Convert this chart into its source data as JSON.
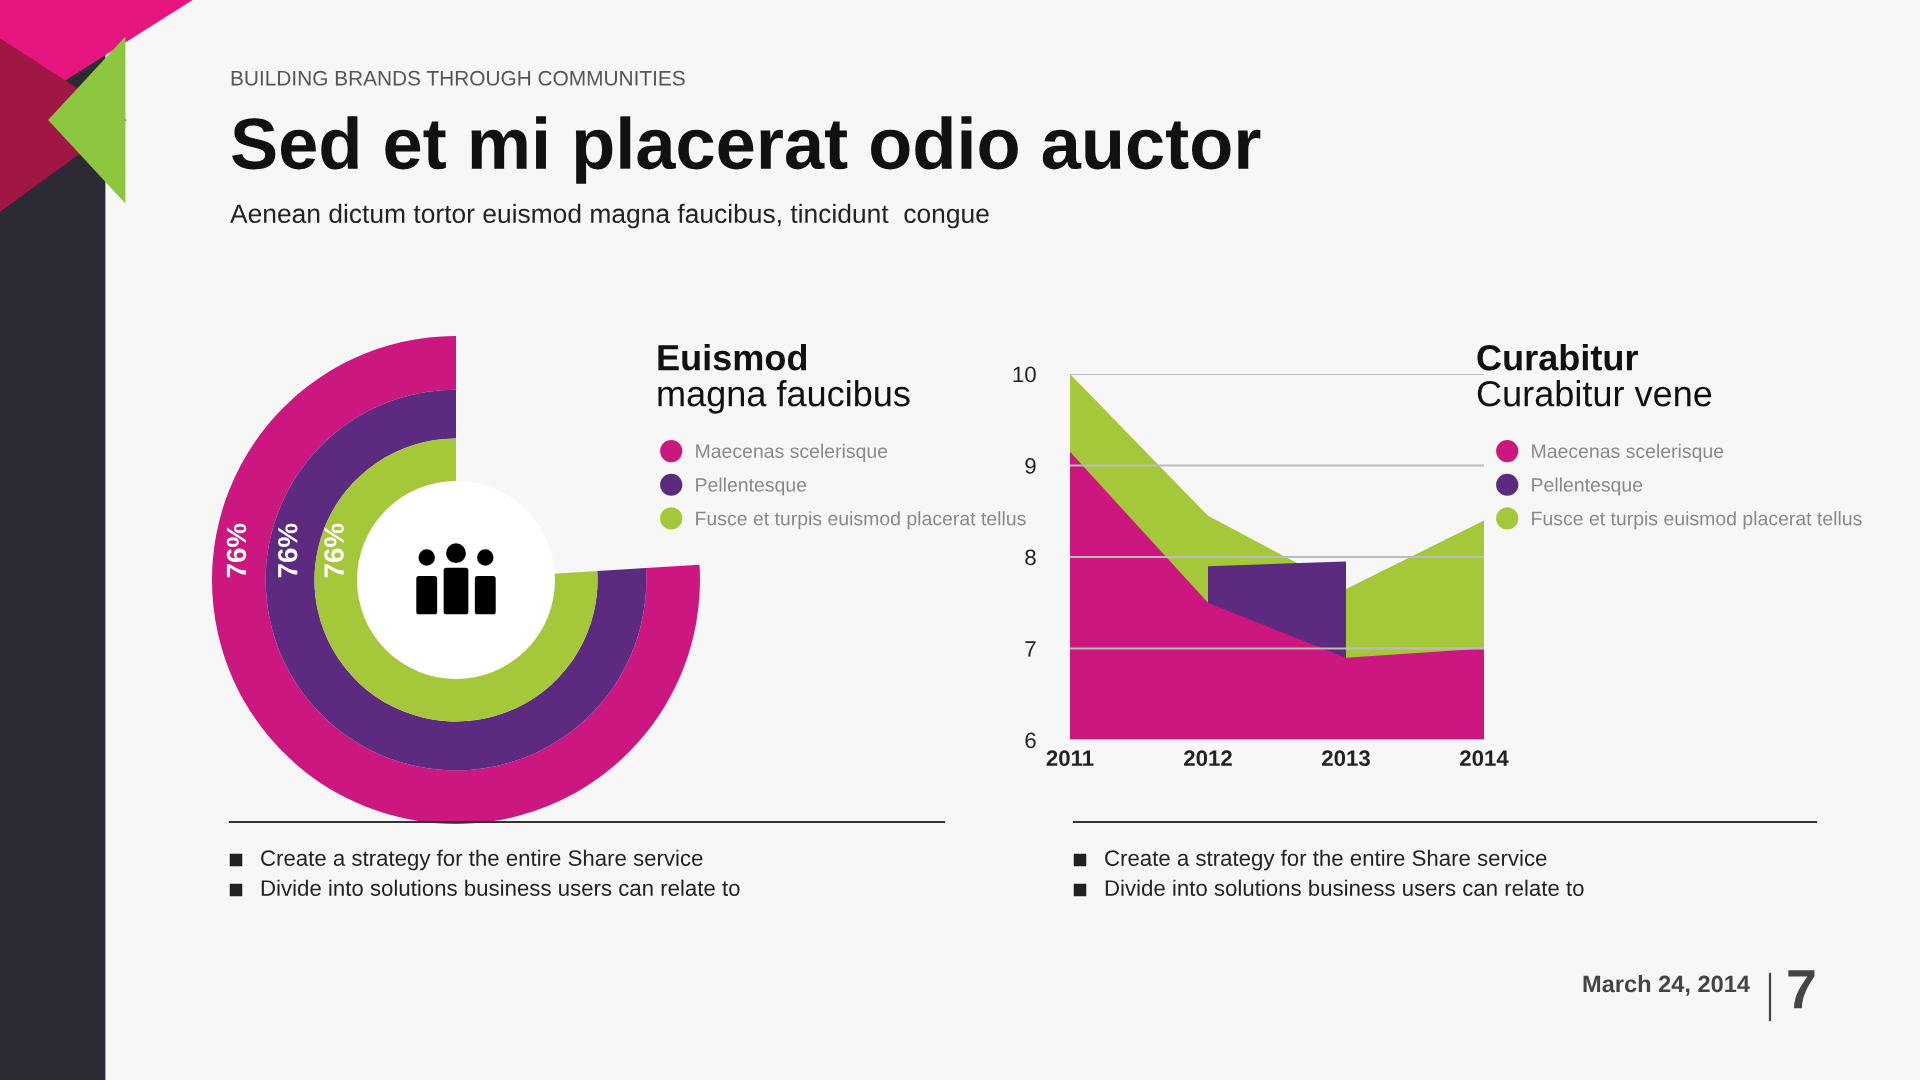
{
  "chart_data": [
    {
      "type": "other",
      "title": "Euismod",
      "subtitle": "magna faucibus",
      "categories": [
        "Maecenas scelerisque",
        "Pellentesque",
        "Fusce et turpis euismod placerat tellus"
      ],
      "values": [
        76,
        76,
        76
      ],
      "value_labels": [
        "76%",
        "76%",
        "76%"
      ],
      "colors": [
        "#cc1680",
        "#5c2a7e",
        "#a5c83a"
      ],
      "annotations": [
        "BUILDING BRANDS THROUGH COMMUNITIES",
        "Sed et mi placerat odio auctor",
        "Aenean dictum tortor euismod magna faucibus, tincidunt  congue",
        "Create a strategy for the entire Share service",
        "Divide into solutions business users can relate to",
        "March 24, 2014",
        "7"
      ]
    },
    {
      "type": "area",
      "title": "Curabitur",
      "subtitle": "Curabitur vene",
      "categories": [
        "2011",
        "2012",
        "2013",
        "2014"
      ],
      "series": [
        {
          "name": "Maecenas scelerisque",
          "color": "#cc1680",
          "values": [
            9.15,
            7.5,
            6.9,
            7.0
          ]
        },
        {
          "name": "Pellentesque",
          "color": "#5c2a7e",
          "values": [
            null,
            7.9,
            7.95,
            null
          ]
        },
        {
          "name": "Fusce et turpis euismod placerat tellus",
          "color": "#a5c83a",
          "values": [
            10,
            8.45,
            7.65,
            8.4
          ]
        }
      ],
      "ylim": [
        6,
        10
      ],
      "yticks": [
        6,
        7,
        8,
        9,
        10
      ],
      "grid": "y",
      "legend": "right",
      "annotations": [
        "Create a strategy for the entire Share service",
        "Divide into solutions business users can relate to"
      ]
    }
  ]
}
